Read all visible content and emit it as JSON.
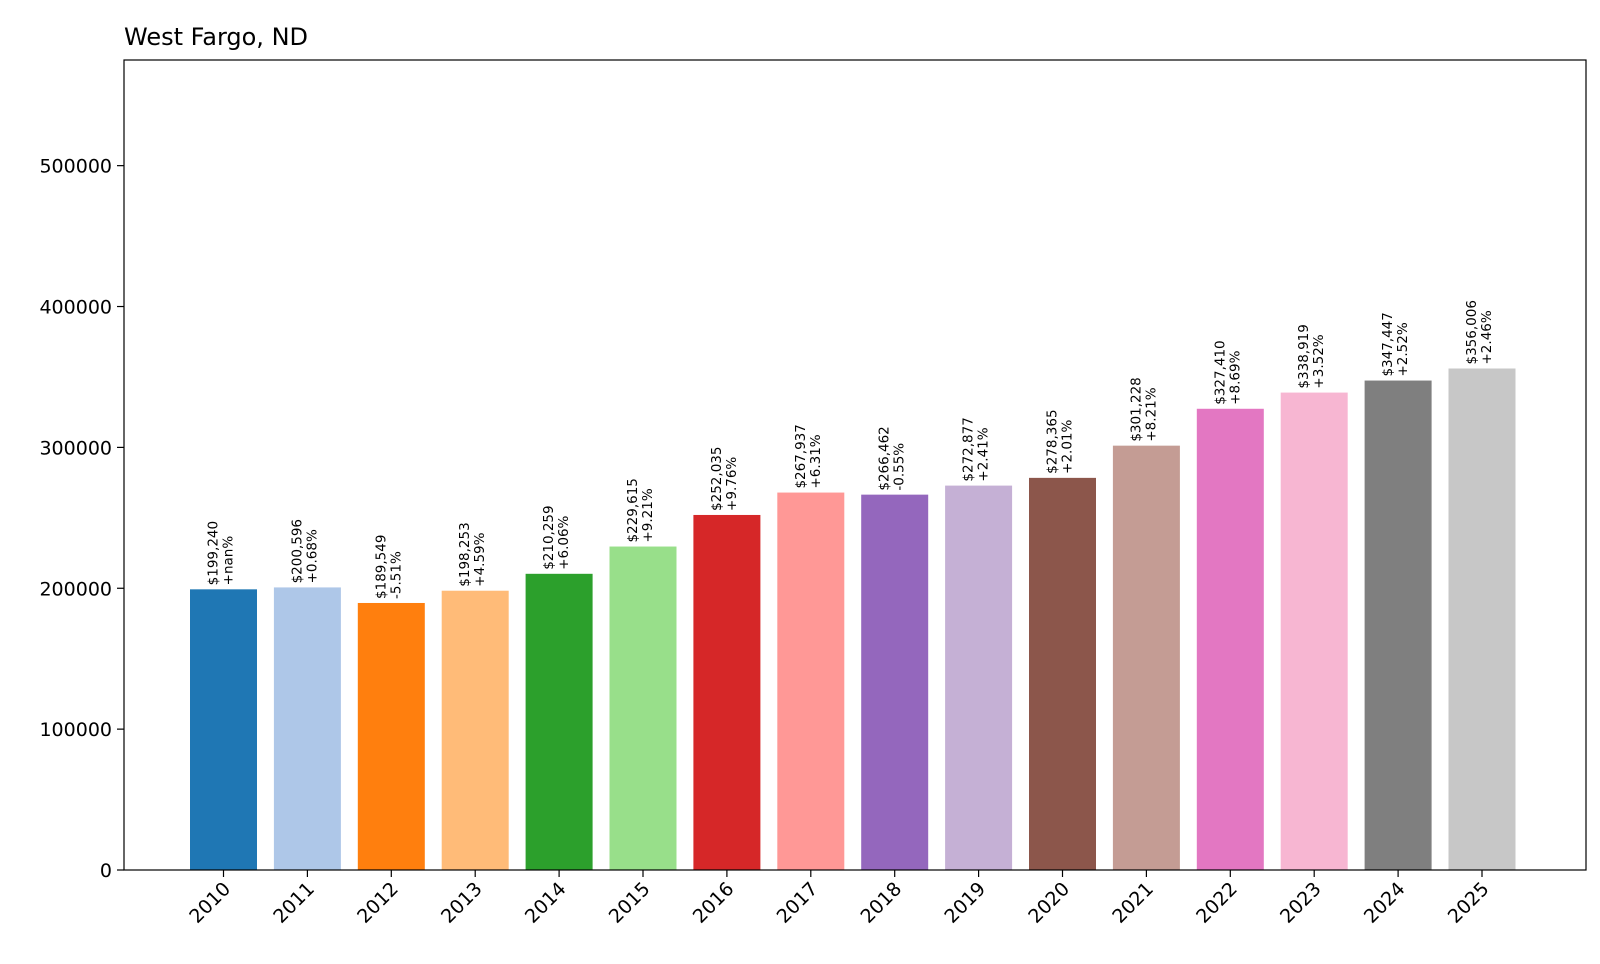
{
  "chart_data": {
    "type": "bar",
    "title": "West Fargo, ND",
    "xlabel": "",
    "ylabel": "",
    "ylim": [
      0,
      575000
    ],
    "yticks": [
      0,
      100000,
      200000,
      300000,
      400000,
      500000
    ],
    "ytick_labels": [
      "0",
      "100000",
      "200000",
      "300000",
      "400000",
      "500000"
    ],
    "grid": false,
    "legend": "none",
    "categories": [
      "2010",
      "2011",
      "2012",
      "2013",
      "2014",
      "2015",
      "2016",
      "2017",
      "2018",
      "2019",
      "2020",
      "2021",
      "2022",
      "2023",
      "2024",
      "2025"
    ],
    "values": [
      199240,
      200596,
      189549,
      198253,
      210259,
      229615,
      252035,
      267937,
      266462,
      272877,
      278365,
      301228,
      327410,
      338919,
      347447,
      356006
    ],
    "value_labels": [
      "$199,240",
      "$200,596",
      "$189,549",
      "$198,253",
      "$210,259",
      "$229,615",
      "$252,035",
      "$267,937",
      "$266,462",
      "$272,877",
      "$278,365",
      "$301,228",
      "$327,410",
      "$338,919",
      "$347,447",
      "$356,006"
    ],
    "change_labels": [
      "+nan%",
      "+0.68%",
      "-5.51%",
      "+4.59%",
      "+6.06%",
      "+9.21%",
      "+9.76%",
      "+6.31%",
      "-0.55%",
      "+2.41%",
      "+2.01%",
      "+8.21%",
      "+8.69%",
      "+3.52%",
      "+2.52%",
      "+2.46%"
    ],
    "colors": [
      "#1f77b4",
      "#aec7e8",
      "#ff7f0e",
      "#ffbb78",
      "#2ca02c",
      "#98df8a",
      "#d62728",
      "#ff9896",
      "#9467bd",
      "#c5b0d5",
      "#8c564b",
      "#c49c94",
      "#e377c2",
      "#f7b6d2",
      "#7f7f7f",
      "#c7c7c7"
    ]
  }
}
